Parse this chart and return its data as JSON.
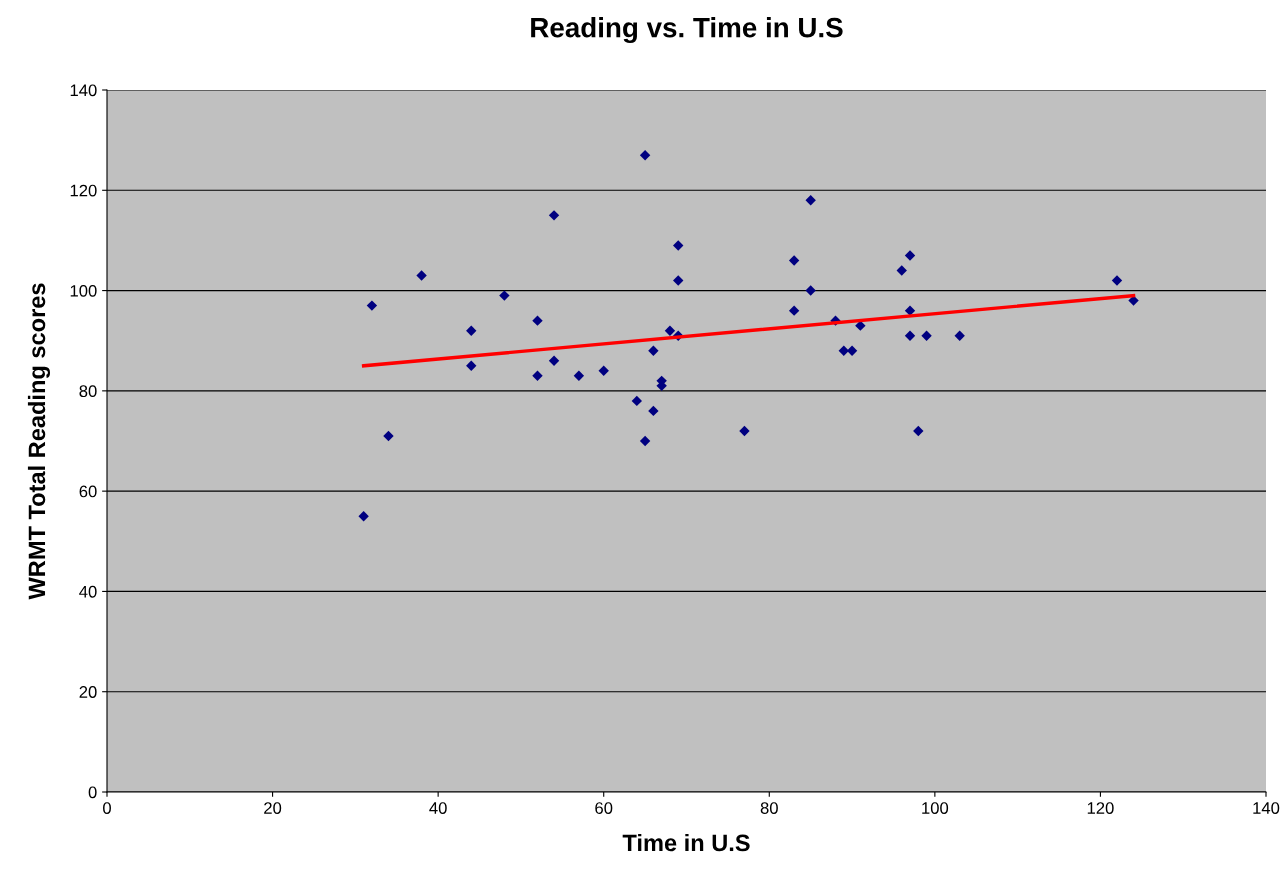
{
  "chart_data": {
    "type": "scatter",
    "title": "Reading vs. Time in U.S",
    "xlabel": "Time in U.S",
    "ylabel": "WRMT Total Reading scores",
    "xlim": [
      0,
      140
    ],
    "xticks": [
      0,
      20,
      40,
      60,
      80,
      100,
      120,
      140
    ],
    "ylim": [
      0,
      140
    ],
    "yticks": [
      0,
      20,
      40,
      60,
      80,
      100,
      120,
      140
    ],
    "grid": "y",
    "marker": "diamond",
    "legend": false,
    "series": [
      {
        "color": "#000080",
        "x": [
          31,
          32,
          34,
          38,
          44,
          44,
          48,
          52,
          52,
          54,
          54,
          57,
          60,
          64,
          65,
          65,
          66,
          66,
          67,
          67,
          68,
          69,
          69,
          69,
          77,
          83,
          83,
          85,
          85,
          88,
          89,
          90,
          91,
          96,
          97,
          97,
          97,
          98,
          99,
          103,
          122,
          124
        ],
        "values": [
          55,
          97,
          71,
          103,
          92,
          85,
          99,
          94,
          83,
          115,
          86,
          83,
          84,
          78,
          127,
          70,
          88,
          76,
          82,
          81,
          92,
          109,
          102,
          91,
          72,
          106,
          96,
          118,
          100,
          94,
          88,
          88,
          93,
          104,
          107,
          96,
          91,
          72,
          91,
          91,
          102,
          98
        ]
      },
      {
        "type": "line",
        "color": "#ff0000",
        "marker": "none",
        "x": [
          31,
          124
        ],
        "values": [
          85,
          99
        ]
      }
    ]
  }
}
